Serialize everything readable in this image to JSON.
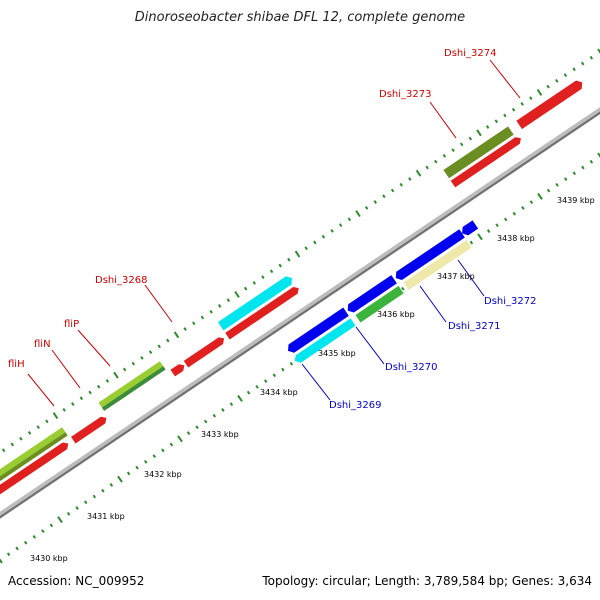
{
  "title": "Dinoroseobacter shibae DFL 12, complete genome",
  "footer": {
    "accession": "Accession: NC_009952",
    "stats": "Topology: circular; Length: 3,789,584 bp; Genes: 3,634"
  },
  "colors": {
    "backbone": "#a9a9a9",
    "tick": "#2e8b2e",
    "red_label": "#cc0000",
    "blue_label": "#0000cc"
  },
  "kbp_labels": [
    "3430 kbp",
    "3431 kbp",
    "3432 kbp",
    "3433 kbp",
    "3434 kbp",
    "3435 kbp",
    "3436 kbp",
    "3437 kbp",
    "3438 kbp",
    "3439 kbp"
  ],
  "gene_labels_forward": [
    "fliH",
    "fliN",
    "fliP",
    "Dshi_3268",
    "Dshi_3273",
    "Dshi_3274"
  ],
  "gene_labels_reverse": [
    "Dshi_3269",
    "Dshi_3270",
    "Dshi_3271",
    "Dshi_3272"
  ]
}
